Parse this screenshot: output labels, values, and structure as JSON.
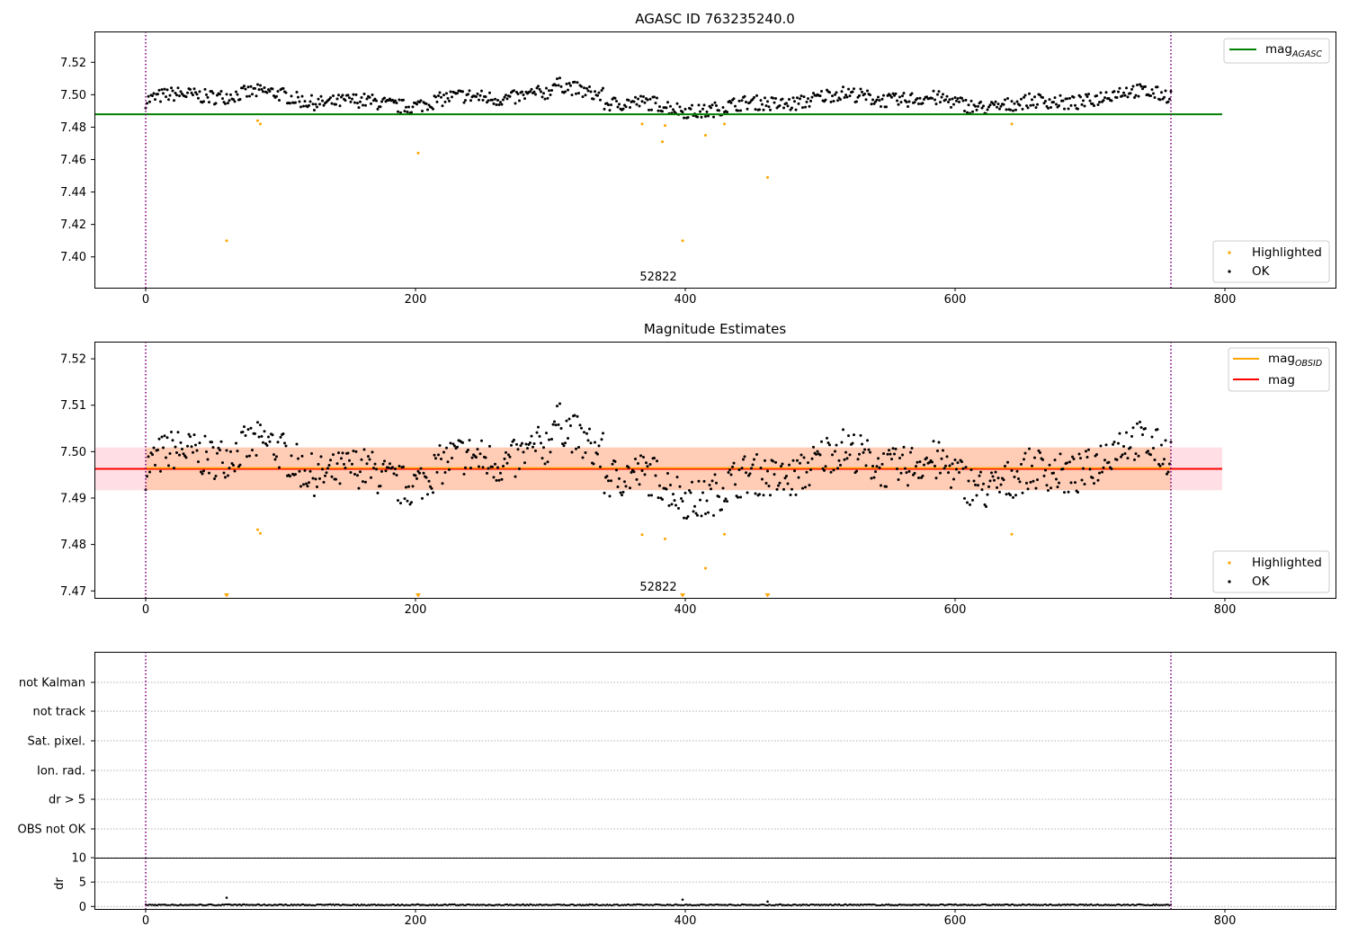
{
  "colors": {
    "ok": "#000000",
    "highlighted": "#ffa500",
    "mag_agasc": "#008000",
    "mag_obsid": "#ffa500",
    "mag": "#ff0000",
    "obsid_boundary": "#800080",
    "obsid_band": "#ffb070",
    "mag_band": "#ffc0cb"
  },
  "chart_data": [
    {
      "type": "scatter",
      "title": "AGASC ID 763235240.0",
      "xlim": [
        -38,
        882
      ],
      "ylim": [
        7.381,
        7.539
      ],
      "xticks": [
        "0",
        "200",
        "400",
        "600",
        "800"
      ],
      "yticks": [
        "7.40",
        "7.42",
        "7.44",
        "7.46",
        "7.48",
        "7.50",
        "7.52"
      ],
      "obsid_label": "52822",
      "obsid_boundaries": [
        0,
        760
      ],
      "reference_line": {
        "name": "mag",
        "subscript": "AGASC",
        "value": 7.4879,
        "x_range": [
          -38,
          798
        ]
      },
      "legend_lines_position": "top-right",
      "legend_points_position": "bottom-right",
      "points_series": [
        {
          "name": "Highlighted",
          "x": [
            60,
            83,
            85,
            202,
            368,
            383,
            385,
            398,
            415,
            429,
            461,
            642
          ],
          "y": [
            7.41,
            7.484,
            7.482,
            7.464,
            7.482,
            7.471,
            7.481,
            7.41,
            7.475,
            7.482,
            7.449,
            7.482
          ]
        },
        {
          "name": "OK",
          "note_points": "about 760 points, x = 0 to 760 step 1, y mostly between 7.485 and 7.508"
        }
      ]
    },
    {
      "type": "scatter",
      "title": "Magnitude Estimates",
      "xlim": [
        -38,
        882
      ],
      "ylim": [
        7.4685,
        7.5237
      ],
      "xticks": [
        "0",
        "200",
        "400",
        "600",
        "800"
      ],
      "yticks": [
        "7.47",
        "7.48",
        "7.49",
        "7.50",
        "7.51",
        "7.52"
      ],
      "obsid_label": "52822",
      "obsid_boundaries": [
        0,
        760
      ],
      "mag_line": {
        "name": "mag",
        "value": 7.4963,
        "band": [
          7.4917,
          7.5009
        ],
        "x_range": [
          -38,
          798
        ]
      },
      "mag_obsid_line": {
        "name": "mag",
        "subscript": "OBSID",
        "value": 7.4963,
        "band": [
          7.4917,
          7.5009
        ],
        "x_range": [
          0,
          760
        ]
      },
      "legend_lines_position": "top-right",
      "legend_points_position": "bottom-right",
      "points_series": [
        {
          "name": "Highlighted",
          "x": [
            83,
            85,
            368,
            385,
            415,
            429,
            642
          ],
          "y": [
            7.4832,
            7.4824,
            7.4821,
            7.4812,
            7.4749,
            7.4822,
            7.4822
          ]
        },
        {
          "name": "Highlighted (below axis, shown as triangles)",
          "x": [
            60,
            202,
            398,
            461
          ],
          "y": [
            7.469,
            7.469,
            7.469,
            7.469
          ]
        },
        {
          "name": "OK",
          "note_points": "same series as top panel, rescaled"
        }
      ]
    },
    {
      "type": "scatter",
      "title": "",
      "xlim": [
        -38,
        882
      ],
      "flag_rows": [
        "not Kalman",
        "not track",
        "Sat. pixel.",
        "Ion. rad.",
        "dr > 5",
        "OBS not OK"
      ],
      "flags_set": [],
      "obsid_boundaries": [
        0,
        760
      ]
    },
    {
      "type": "scatter",
      "title": "",
      "ylabel": "dr",
      "xlim": [
        -38,
        882
      ],
      "ylim": [
        -0.5,
        10
      ],
      "xticks": [
        "0",
        "200",
        "400",
        "600",
        "800"
      ],
      "yticks": [
        "0",
        "5",
        "10"
      ],
      "obsid_boundaries": [
        0,
        760
      ],
      "series": [
        {
          "name": "dr",
          "x": [
            60,
            398,
            461
          ],
          "y": [
            1.8,
            1.4,
            1.0
          ],
          "note_points": "all other points near 0.2"
        }
      ]
    }
  ]
}
